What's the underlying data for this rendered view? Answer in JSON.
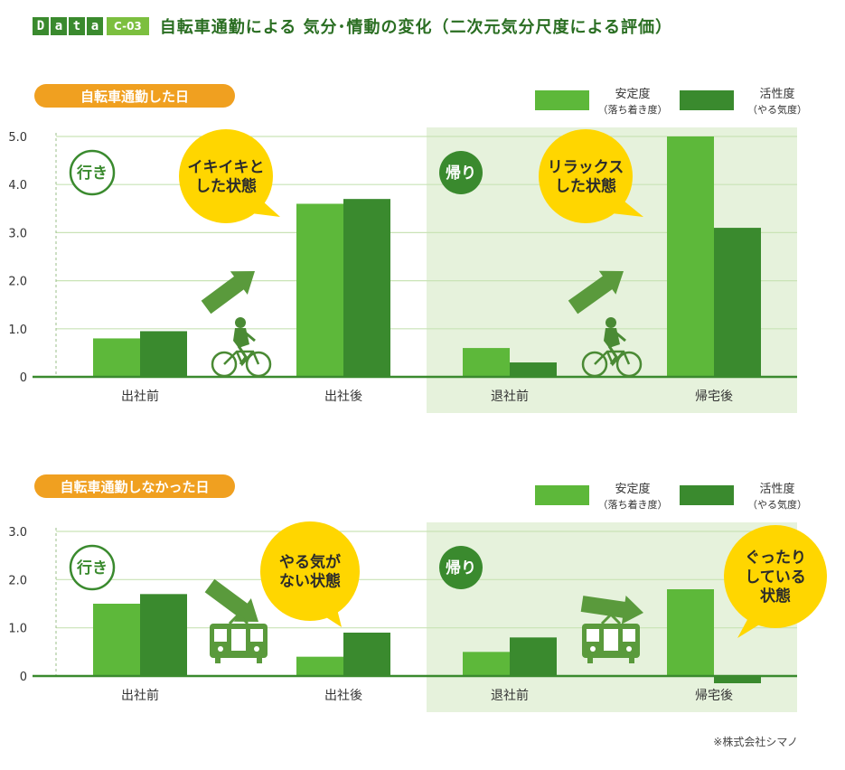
{
  "header": {
    "data_letters": [
      "D",
      "a",
      "t",
      "a"
    ],
    "code": "C-03",
    "title": "自転車通勤による 気分･情動の変化（二次元気分尺度による評価）"
  },
  "note": "※株式会社シマノ",
  "colors": {
    "stability": "#5db83a",
    "activity": "#3a8a2e",
    "band": "#e6f2dc",
    "pill": "#f0a020",
    "bubble": "#ffd600",
    "axis": "#3a8a2e",
    "grid": "#c9e3b6"
  },
  "labels": {
    "go": "行き",
    "return": "帰り"
  },
  "chart_data": [
    {
      "type": "bar",
      "title": "自転車通勤した日",
      "categories": [
        "出社前",
        "出社後",
        "退社前",
        "帰宅後"
      ],
      "series": [
        {
          "name": "安定度",
          "sub": "（落ち着き度）",
          "values": [
            0.8,
            3.6,
            0.6,
            5.0
          ]
        },
        {
          "name": "活性度",
          "sub": "（やる気度）",
          "values": [
            0.95,
            3.7,
            0.3,
            3.1
          ]
        }
      ],
      "yticks": [
        "0",
        "1.0",
        "2.0",
        "3.0",
        "4.0",
        "5.0"
      ],
      "ylim": [
        0,
        5
      ],
      "bubbles": [
        "イキイキと\nした状態",
        "リラックス\nした状態"
      ],
      "vehicle": "bicycle"
    },
    {
      "type": "bar",
      "title": "自転車通勤しなかった日",
      "categories": [
        "出社前",
        "出社後",
        "退社前",
        "帰宅後"
      ],
      "series": [
        {
          "name": "安定度",
          "sub": "（落ち着き度）",
          "values": [
            1.5,
            0.4,
            0.5,
            1.8
          ]
        },
        {
          "name": "活性度",
          "sub": "（やる気度）",
          "values": [
            1.7,
            0.9,
            0.8,
            -0.15
          ]
        }
      ],
      "yticks": [
        "0",
        "1.0",
        "2.0",
        "3.0"
      ],
      "ylim": [
        0,
        3
      ],
      "bubbles": [
        "やる気が\nない状態",
        "ぐったり\nしている\n状態"
      ],
      "vehicle": "train"
    }
  ]
}
